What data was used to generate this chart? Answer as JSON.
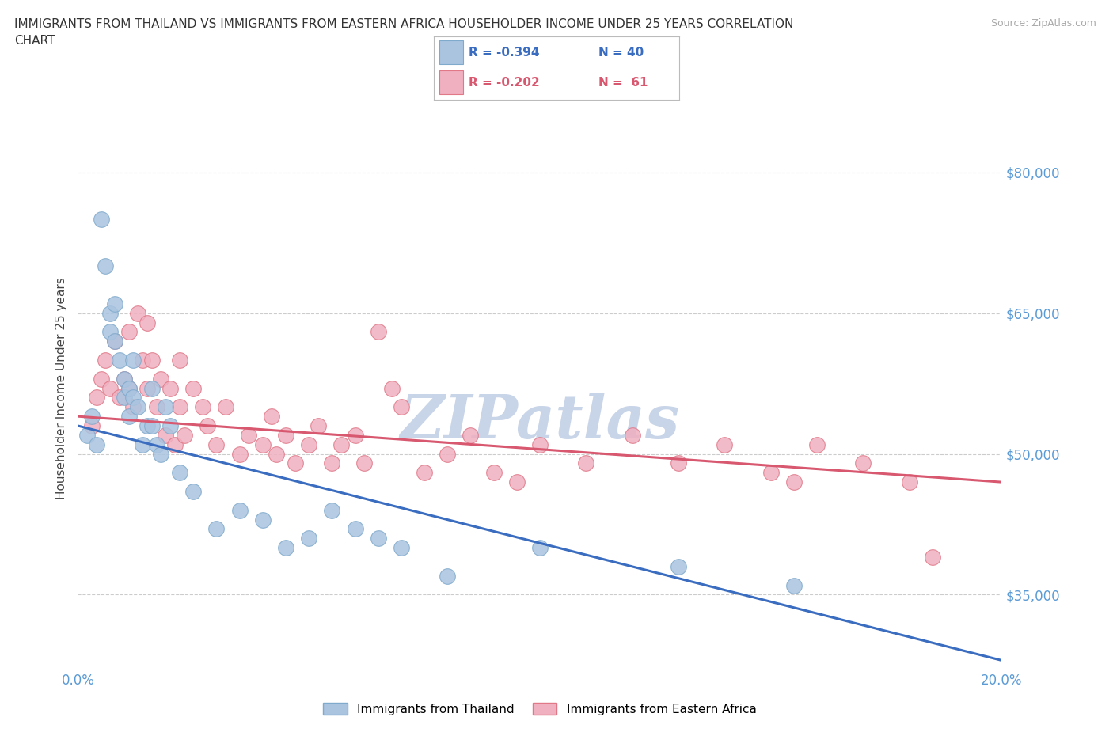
{
  "title": "IMMIGRANTS FROM THAILAND VS IMMIGRANTS FROM EASTERN AFRICA HOUSEHOLDER INCOME UNDER 25 YEARS CORRELATION\nCHART",
  "source_text": "Source: ZipAtlas.com",
  "ylabel": "Householder Income Under 25 years",
  "xlim": [
    0.0,
    0.2
  ],
  "ylim": [
    27000,
    87000
  ],
  "xticks": [
    0.0,
    0.05,
    0.1,
    0.15,
    0.2
  ],
  "xticklabels": [
    "0.0%",
    "",
    "",
    "",
    "20.0%"
  ],
  "yticks": [
    35000,
    50000,
    65000,
    80000
  ],
  "yticklabels": [
    "$35,000",
    "$50,000",
    "$65,000",
    "$80,000"
  ],
  "grid_color": "#cccccc",
  "background_color": "#ffffff",
  "thailand_color": "#aac4e0",
  "thailand_edge": "#80aacc",
  "eastern_africa_color": "#f0b0c0",
  "eastern_africa_edge": "#e07888",
  "thailand_R": -0.394,
  "thailand_N": 40,
  "eastern_africa_R": -0.202,
  "eastern_africa_N": 61,
  "trend_thailand_color": "#3a6cc0",
  "trend_eastern_color": "#d85870",
  "thailand_x": [
    0.002,
    0.003,
    0.004,
    0.005,
    0.006,
    0.007,
    0.007,
    0.008,
    0.008,
    0.009,
    0.01,
    0.01,
    0.011,
    0.011,
    0.012,
    0.012,
    0.013,
    0.014,
    0.015,
    0.016,
    0.016,
    0.017,
    0.018,
    0.019,
    0.02,
    0.022,
    0.025,
    0.03,
    0.035,
    0.04,
    0.045,
    0.05,
    0.055,
    0.06,
    0.065,
    0.07,
    0.08,
    0.1,
    0.13,
    0.155
  ],
  "thailand_y": [
    52000,
    54000,
    51000,
    75000,
    70000,
    65000,
    63000,
    66000,
    62000,
    60000,
    58000,
    56000,
    57000,
    54000,
    60000,
    56000,
    55000,
    51000,
    53000,
    57000,
    53000,
    51000,
    50000,
    55000,
    53000,
    48000,
    46000,
    42000,
    44000,
    43000,
    40000,
    41000,
    44000,
    42000,
    41000,
    40000,
    37000,
    40000,
    38000,
    36000
  ],
  "eastern_x": [
    0.003,
    0.004,
    0.005,
    0.006,
    0.007,
    0.008,
    0.009,
    0.01,
    0.011,
    0.011,
    0.012,
    0.013,
    0.014,
    0.015,
    0.015,
    0.016,
    0.017,
    0.018,
    0.019,
    0.02,
    0.021,
    0.022,
    0.022,
    0.023,
    0.025,
    0.027,
    0.028,
    0.03,
    0.032,
    0.035,
    0.037,
    0.04,
    0.042,
    0.043,
    0.045,
    0.047,
    0.05,
    0.052,
    0.055,
    0.057,
    0.06,
    0.062,
    0.065,
    0.068,
    0.07,
    0.075,
    0.08,
    0.085,
    0.09,
    0.095,
    0.1,
    0.11,
    0.12,
    0.13,
    0.14,
    0.15,
    0.155,
    0.16,
    0.17,
    0.18,
    0.185
  ],
  "eastern_y": [
    53000,
    56000,
    58000,
    60000,
    57000,
    62000,
    56000,
    58000,
    63000,
    57000,
    55000,
    65000,
    60000,
    64000,
    57000,
    60000,
    55000,
    58000,
    52000,
    57000,
    51000,
    55000,
    60000,
    52000,
    57000,
    55000,
    53000,
    51000,
    55000,
    50000,
    52000,
    51000,
    54000,
    50000,
    52000,
    49000,
    51000,
    53000,
    49000,
    51000,
    52000,
    49000,
    63000,
    57000,
    55000,
    48000,
    50000,
    52000,
    48000,
    47000,
    51000,
    49000,
    52000,
    49000,
    51000,
    48000,
    47000,
    51000,
    49000,
    47000,
    39000
  ],
  "watermark_color": "#c8d4e8",
  "watermark_fontsize": 55,
  "th_trend_x0": 0.0,
  "th_trend_y0": 53000,
  "th_trend_x1": 0.2,
  "th_trend_y1": 28000,
  "ea_trend_x0": 0.0,
  "ea_trend_y0": 54000,
  "ea_trend_x1": 0.2,
  "ea_trend_y1": 47000
}
